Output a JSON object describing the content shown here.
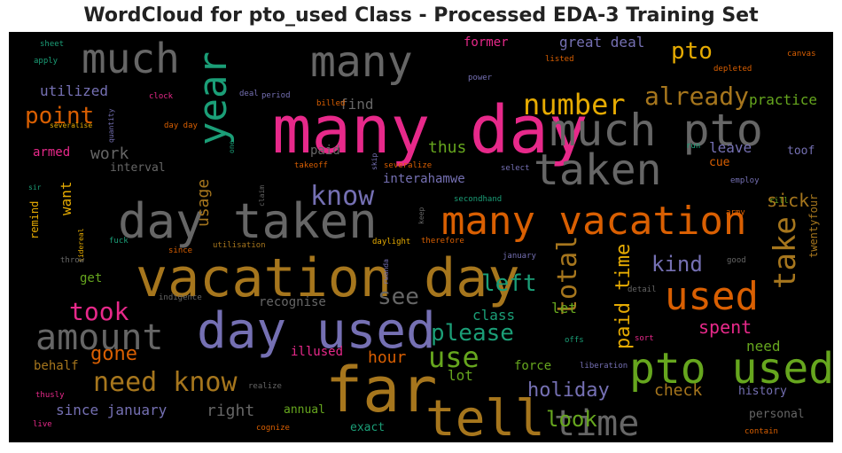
{
  "title": "WordCloud for pto_used Class - Processed EDA-3 Training Set",
  "palette": {
    "pink": "#e7298a",
    "gold": "#a6761d",
    "orange": "#d95f02",
    "purple": "#7570b3",
    "teal": "#1b9e77",
    "green": "#66a61e",
    "yellow": "#e6ab02",
    "gray": "#666666"
  },
  "words": [
    {
      "text": "many day",
      "color": "pink"
    },
    {
      "text": "vacation day",
      "color": "gold"
    },
    {
      "text": "day taken",
      "color": "gray"
    },
    {
      "text": "day used",
      "color": "purple"
    },
    {
      "text": "far",
      "color": "gold"
    },
    {
      "text": "many vacation",
      "color": "orange"
    },
    {
      "text": "pto used",
      "color": "green"
    },
    {
      "text": "much pto",
      "color": "gray"
    },
    {
      "text": "many",
      "color": "gray"
    },
    {
      "text": "much",
      "color": "gray"
    },
    {
      "text": "tell",
      "color": "gold"
    },
    {
      "text": "taken",
      "color": "gray"
    },
    {
      "text": "year",
      "color": "teal"
    },
    {
      "text": "used",
      "color": "orange"
    },
    {
      "text": "amount",
      "color": "gray"
    },
    {
      "text": "time",
      "color": "gray"
    },
    {
      "text": "number",
      "color": "yellow"
    },
    {
      "text": "need know",
      "color": "gold"
    },
    {
      "text": "take",
      "color": "gold"
    },
    {
      "text": "already",
      "color": "gold"
    },
    {
      "text": "total",
      "color": "gold"
    },
    {
      "text": "use",
      "color": "green"
    },
    {
      "text": "know",
      "color": "purple"
    },
    {
      "text": "left",
      "color": "teal"
    },
    {
      "text": "took",
      "color": "pink"
    },
    {
      "text": "please",
      "color": "teal"
    },
    {
      "text": "point",
      "color": "orange"
    },
    {
      "text": "pto",
      "color": "yellow"
    },
    {
      "text": "kind",
      "color": "purple"
    },
    {
      "text": "see",
      "color": "gray"
    },
    {
      "text": "paid time",
      "color": "yellow"
    },
    {
      "text": "look",
      "color": "green"
    },
    {
      "text": "holiday",
      "color": "purple"
    },
    {
      "text": "sick",
      "color": "gold"
    },
    {
      "text": "spent",
      "color": "pink"
    },
    {
      "text": "gone",
      "color": "orange"
    },
    {
      "text": "utilized",
      "color": "purple"
    },
    {
      "text": "thus",
      "color": "green"
    },
    {
      "text": "work",
      "color": "gray"
    },
    {
      "text": "usage",
      "color": "gold"
    },
    {
      "text": "hour",
      "color": "orange"
    },
    {
      "text": "right",
      "color": "gray"
    },
    {
      "text": "since january",
      "color": "purple"
    },
    {
      "text": "great deal",
      "color": "purple"
    },
    {
      "text": "leave",
      "color": "purple"
    },
    {
      "text": "check",
      "color": "gold"
    },
    {
      "text": "find",
      "color": "gray"
    },
    {
      "text": "paid",
      "color": "gray"
    },
    {
      "text": "practice",
      "color": "green"
    },
    {
      "text": "let",
      "color": "green"
    },
    {
      "text": "class",
      "color": "teal"
    },
    {
      "text": "want",
      "color": "yellow"
    },
    {
      "text": "former",
      "color": "pink"
    },
    {
      "text": "interahamwe",
      "color": "purple"
    },
    {
      "text": "need",
      "color": "green"
    },
    {
      "text": "lot",
      "color": "green"
    },
    {
      "text": "armed",
      "color": "pink"
    },
    {
      "text": "behalf",
      "color": "gold"
    },
    {
      "text": "get",
      "color": "green"
    },
    {
      "text": "illused",
      "color": "pink"
    },
    {
      "text": "force",
      "color": "green"
    },
    {
      "text": "recognise",
      "color": "gray"
    },
    {
      "text": "interval",
      "color": "gray"
    },
    {
      "text": "cue",
      "color": "orange"
    },
    {
      "text": "toof",
      "color": "purple"
    },
    {
      "text": "personal",
      "color": "gray"
    },
    {
      "text": "annual",
      "color": "green"
    },
    {
      "text": "exact",
      "color": "teal"
    },
    {
      "text": "history",
      "color": "purple"
    },
    {
      "text": "twentyfour",
      "color": "gold"
    },
    {
      "text": "remind",
      "color": "yellow"
    },
    {
      "text": "sheet",
      "color": "teal"
    },
    {
      "text": "apply",
      "color": "teal"
    },
    {
      "text": "clock",
      "color": "pink"
    },
    {
      "text": "deal",
      "color": "purple"
    },
    {
      "text": "period",
      "color": "purple"
    },
    {
      "text": "billed",
      "color": "orange"
    },
    {
      "text": "listed",
      "color": "orange"
    },
    {
      "text": "power",
      "color": "purple"
    },
    {
      "text": "depleted",
      "color": "orange"
    },
    {
      "text": "canvas",
      "color": "orange"
    },
    {
      "text": "severalise",
      "color": "yellow"
    },
    {
      "text": "quantity",
      "color": "purple"
    },
    {
      "text": "day day",
      "color": "orange"
    },
    {
      "text": "one",
      "color": "teal"
    },
    {
      "text": "takeoff",
      "color": "orange"
    },
    {
      "text": "severalize",
      "color": "orange"
    },
    {
      "text": "select",
      "color": "purple"
    },
    {
      "text": "run",
      "color": "teal"
    },
    {
      "text": "skip",
      "color": "purple"
    },
    {
      "text": "employ",
      "color": "purple"
    },
    {
      "text": "rill",
      "color": "green"
    },
    {
      "text": "army",
      "color": "orange"
    },
    {
      "text": "sir",
      "color": "teal"
    },
    {
      "text": "claim",
      "color": "gray"
    },
    {
      "text": "secondhand",
      "color": "teal"
    },
    {
      "text": "keep",
      "color": "gray"
    },
    {
      "text": "sidereal",
      "color": "yellow"
    },
    {
      "text": "daylight",
      "color": "yellow"
    },
    {
      "text": "therefore",
      "color": "orange"
    },
    {
      "text": "fuck",
      "color": "teal"
    },
    {
      "text": "since",
      "color": "orange"
    },
    {
      "text": "utilisation",
      "color": "gold"
    },
    {
      "text": "rwanda",
      "color": "purple"
    },
    {
      "text": "january",
      "color": "purple"
    },
    {
      "text": "good",
      "color": "gray"
    },
    {
      "text": "throw",
      "color": "gray"
    },
    {
      "text": "indigence",
      "color": "gray"
    },
    {
      "text": "detail",
      "color": "gray"
    },
    {
      "text": "offs",
      "color": "teal"
    },
    {
      "text": "sort",
      "color": "pink"
    },
    {
      "text": "liberation",
      "color": "purple"
    },
    {
      "text": "realize",
      "color": "gray"
    },
    {
      "text": "thusly",
      "color": "pink"
    },
    {
      "text": "live",
      "color": "pink"
    },
    {
      "text": "cognize",
      "color": "orange"
    },
    {
      "text": "contain",
      "color": "orange"
    }
  ]
}
